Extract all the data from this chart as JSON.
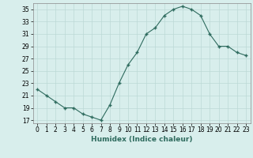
{
  "x": [
    0,
    1,
    2,
    3,
    4,
    5,
    6,
    7,
    8,
    9,
    10,
    11,
    12,
    13,
    14,
    15,
    16,
    17,
    18,
    19,
    20,
    21,
    22,
    23
  ],
  "y": [
    22,
    21,
    20,
    19,
    19,
    18,
    17.5,
    17,
    19.5,
    23,
    26,
    28,
    31,
    32,
    34,
    35,
    35.5,
    35,
    34,
    31,
    29,
    29,
    28,
    27.5
  ],
  "xlabel": "Humidex (Indice chaleur)",
  "xlim": [
    -0.5,
    23.5
  ],
  "ylim": [
    16.5,
    36
  ],
  "yticks": [
    17,
    19,
    21,
    23,
    25,
    27,
    29,
    31,
    33,
    35
  ],
  "xticks": [
    0,
    1,
    2,
    3,
    4,
    5,
    6,
    7,
    8,
    9,
    10,
    11,
    12,
    13,
    14,
    15,
    16,
    17,
    18,
    19,
    20,
    21,
    22,
    23
  ],
  "line_color": "#2e6b5e",
  "marker": "+",
  "marker_size": 3.5,
  "bg_color": "#d8eeec",
  "grid_color": "#bcd9d6",
  "label_fontsize": 6.5,
  "tick_fontsize": 5.5
}
